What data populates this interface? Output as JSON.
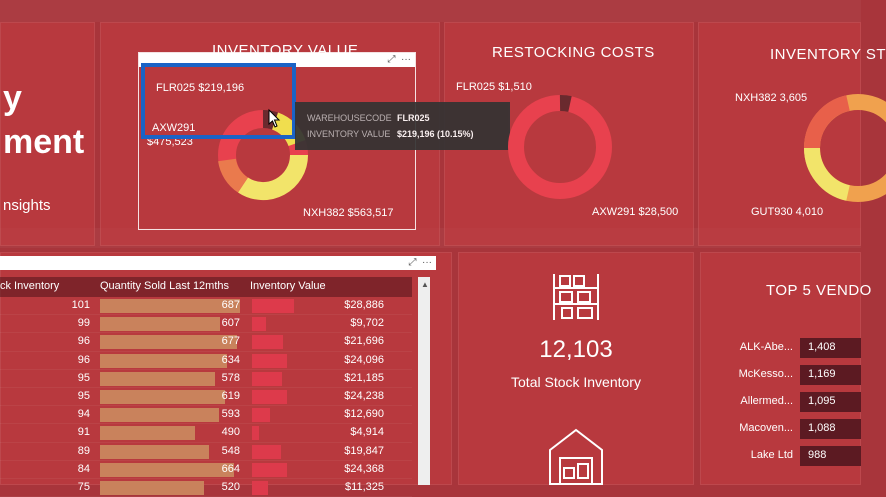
{
  "header": {
    "title_line1": "y",
    "title_line2": "ment",
    "subtitle": "nsights"
  },
  "charts": {
    "inventory_value": {
      "title": "INVENTORY VALUE",
      "labels": [
        "FLR025 $219,196",
        "AXW291",
        "$475,523",
        "NXH382 $563,517"
      ]
    },
    "restocking_costs": {
      "title": "RESTOCKING COSTS",
      "labels": [
        "FLR025 $1,510",
        "AXW291 $28,500"
      ]
    },
    "inventory_stock": {
      "title": "INVENTORY ST",
      "labels": [
        "NXH382 3,605",
        "GUT930 4,010"
      ]
    }
  },
  "tooltip": {
    "key1": "WAREHOUSECODE",
    "val1": "FLR025",
    "key2": "INVENTORY VALUE",
    "val2": "$219,196 (10.15%)"
  },
  "table": {
    "headers": [
      "ck Inventory",
      "Quantity Sold Last 12mths",
      "Inventory Value"
    ],
    "rows": [
      {
        "a": "101",
        "q": "687",
        "qf": 1.0,
        "v": "$28,886",
        "vf": 0.32
      },
      {
        "a": "99",
        "q": "607",
        "qf": 0.86,
        "v": "$9,702",
        "vf": 0.11
      },
      {
        "a": "96",
        "q": "677",
        "qf": 0.98,
        "v": "$21,696",
        "vf": 0.24
      },
      {
        "a": "96",
        "q": "634",
        "qf": 0.91,
        "v": "$24,096",
        "vf": 0.27
      },
      {
        "a": "95",
        "q": "578",
        "qf": 0.82,
        "v": "$21,185",
        "vf": 0.23
      },
      {
        "a": "95",
        "q": "619",
        "qf": 0.89,
        "v": "$24,238",
        "vf": 0.27
      },
      {
        "a": "94",
        "q": "593",
        "qf": 0.85,
        "v": "$12,690",
        "vf": 0.14
      },
      {
        "a": "91",
        "q": "490",
        "qf": 0.68,
        "v": "$4,914",
        "vf": 0.05
      },
      {
        "a": "89",
        "q": "548",
        "qf": 0.78,
        "v": "$19,847",
        "vf": 0.22
      },
      {
        "a": "84",
        "q": "664",
        "qf": 0.96,
        "v": "$24,368",
        "vf": 0.27
      },
      {
        "a": "75",
        "q": "520",
        "qf": 0.74,
        "v": "$11,325",
        "vf": 0.12
      }
    ]
  },
  "kpi": {
    "value": "12,103",
    "label": "Total Stock Inventory"
  },
  "vendors": {
    "title": "TOP 5 VENDO",
    "rows": [
      {
        "name": "ALK-Abe...",
        "value": "1,408"
      },
      {
        "name": "McKesso...",
        "value": "1,169"
      },
      {
        "name": "Allermed...",
        "value": "1,095"
      },
      {
        "name": "Macoven...",
        "value": "1,088"
      },
      {
        "name": "Lake Ltd",
        "value": "988"
      }
    ]
  }
}
